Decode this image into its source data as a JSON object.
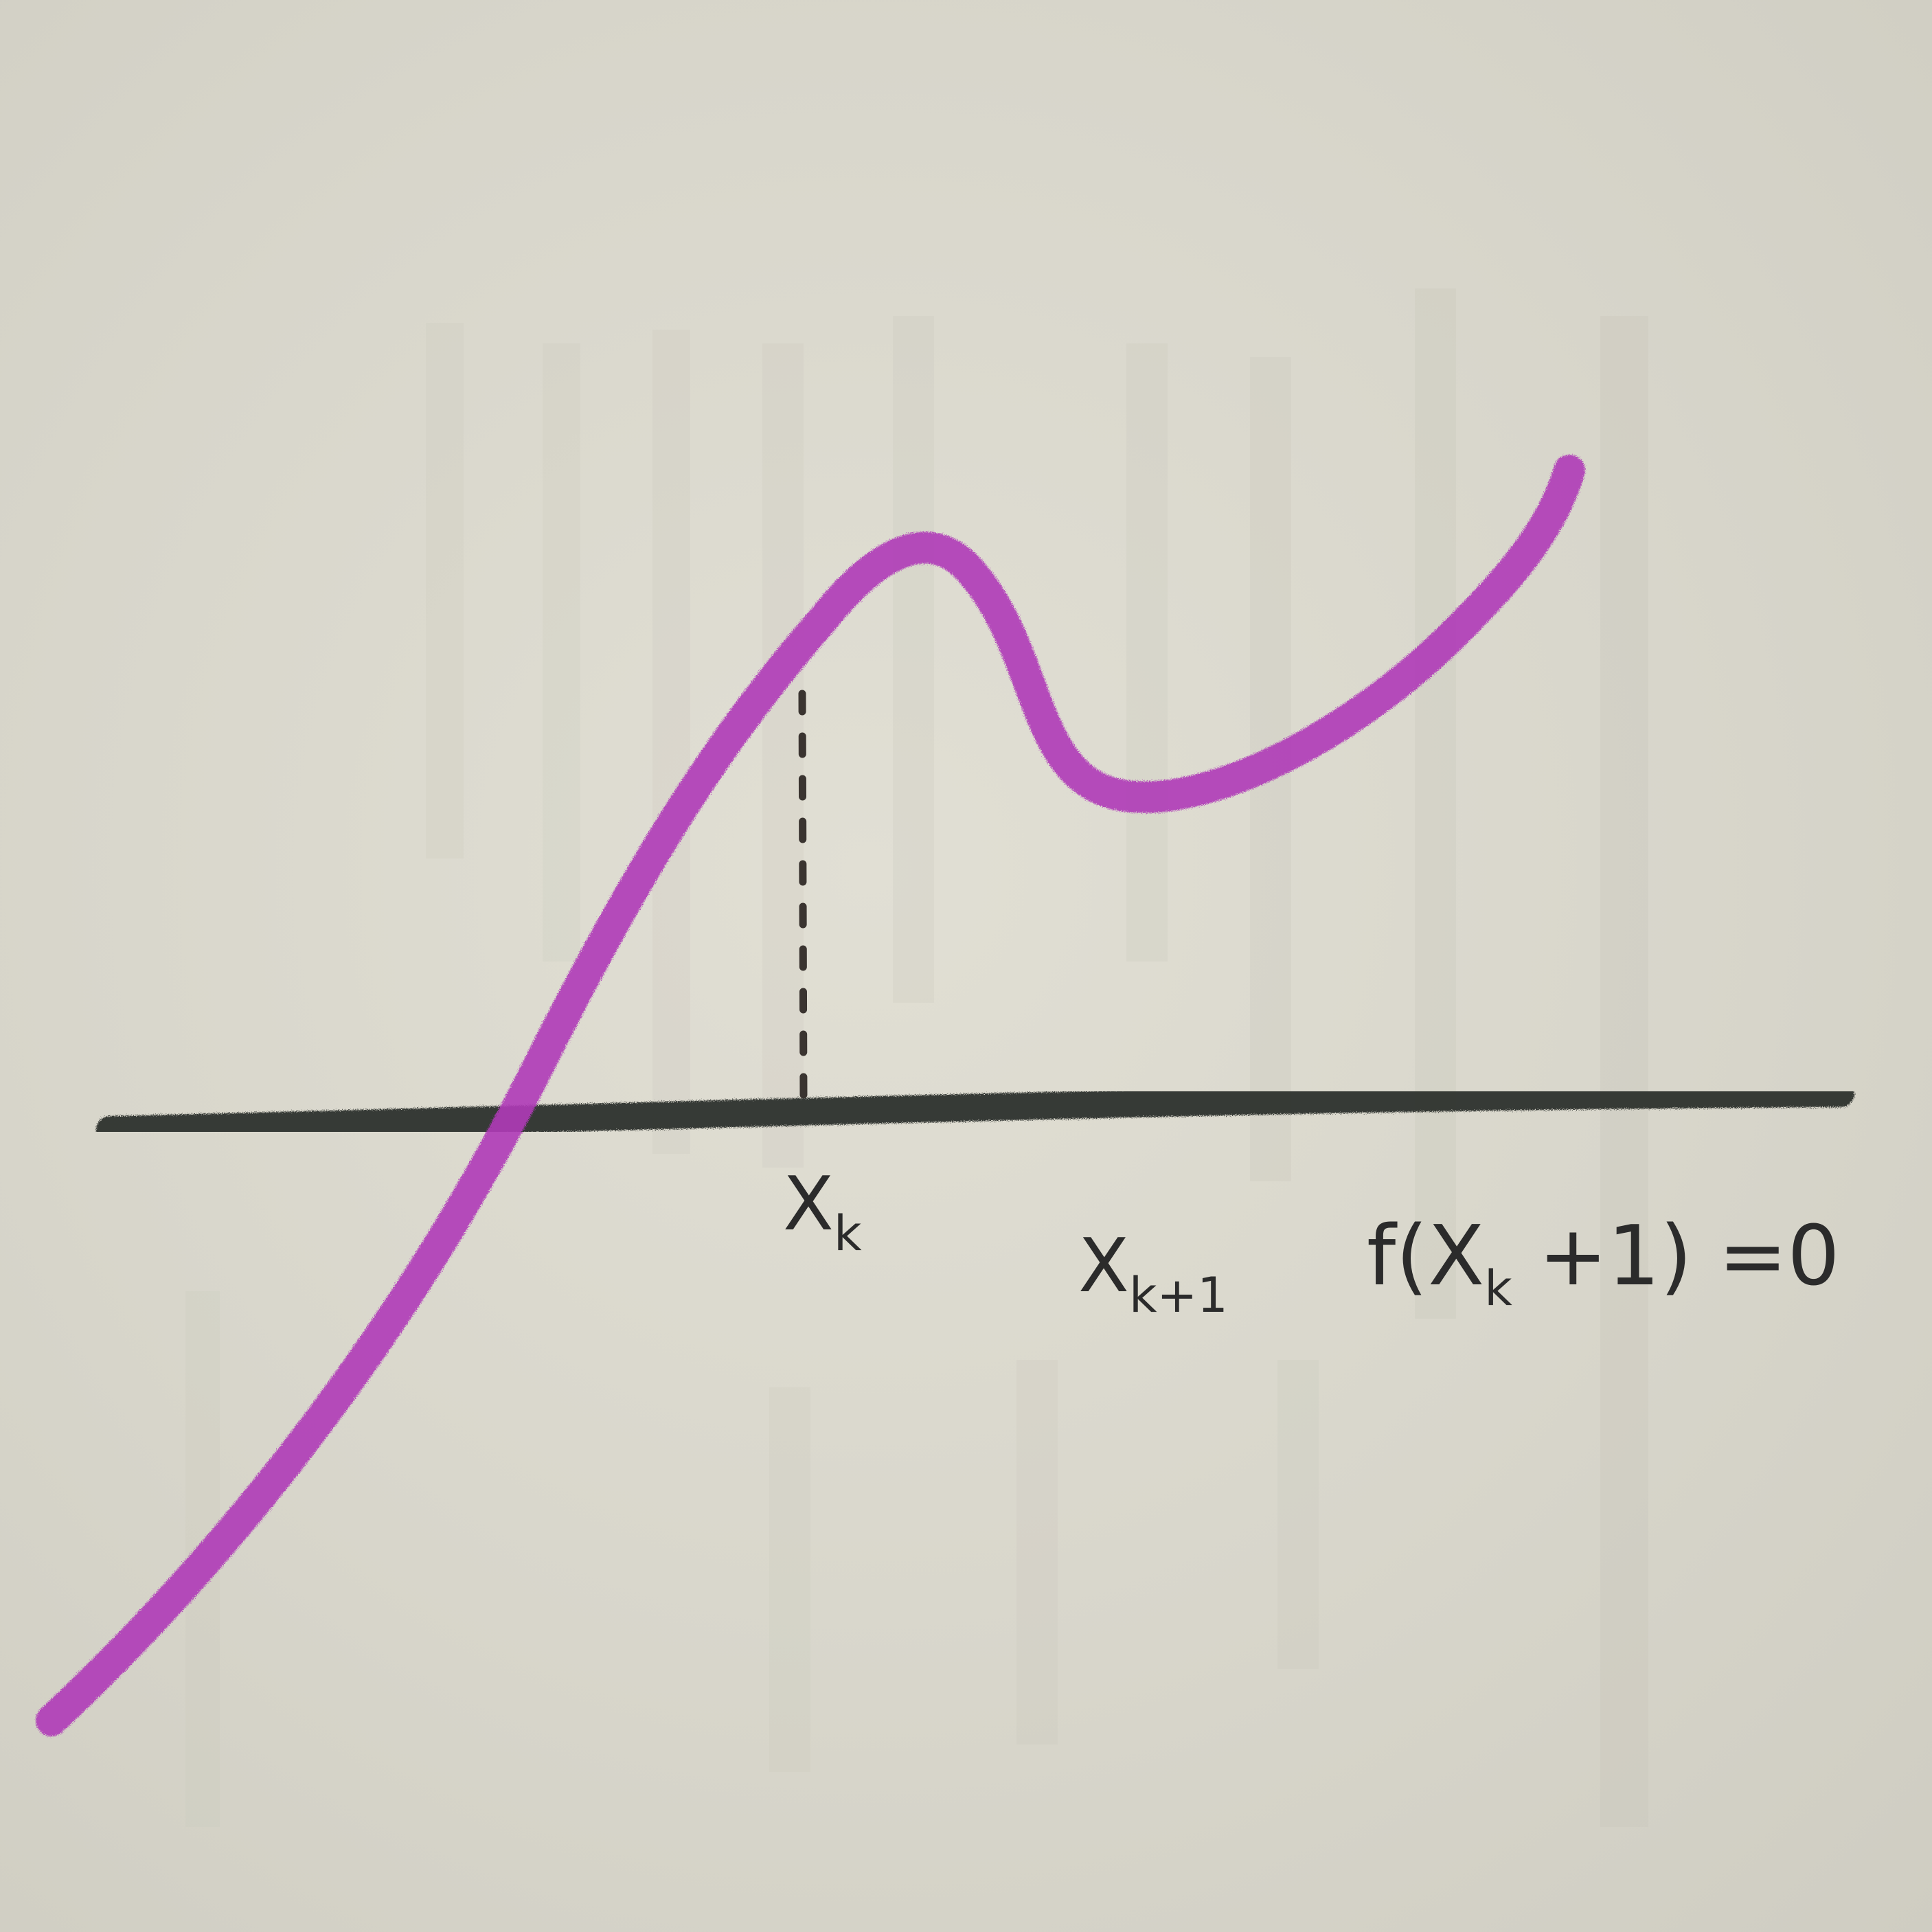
{
  "labels": {
    "xk": {
      "base": "X",
      "sub": "k"
    },
    "xk_plus_1": {
      "base": "X",
      "sub": "k+1"
    },
    "equation": {
      "prefix": "f(X",
      "sub": "k",
      "suffix": " +1) =0"
    }
  },
  "colors": {
    "paper": "#d9d7cc",
    "curve": "#b03ab8",
    "axis": "#2f312d",
    "ink": "#2b2b2b"
  }
}
